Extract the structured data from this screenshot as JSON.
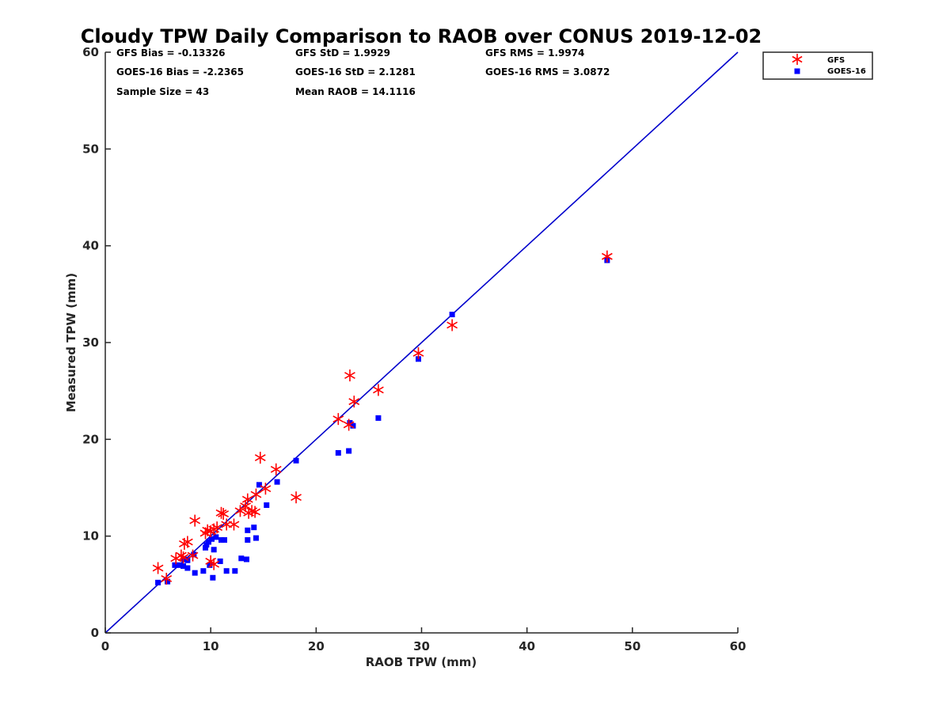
{
  "chart_data": {
    "type": "scatter",
    "title": "Cloudy TPW Daily Comparison to RAOB over CONUS 2019-12-02",
    "xlabel": "RAOB TPW (mm)",
    "ylabel": "Measured TPW (mm)",
    "xlim": [
      0,
      60
    ],
    "ylim": [
      0,
      60
    ],
    "xticks": [
      "0",
      "10",
      "20",
      "30",
      "40",
      "50",
      "60"
    ],
    "yticks": [
      "0",
      "10",
      "20",
      "30",
      "40",
      "50",
      "60"
    ],
    "grid": false,
    "legend_position": "top-right",
    "reference_line": {
      "x": [
        0,
        60
      ],
      "y": [
        0,
        60
      ],
      "color": "#0000cc"
    },
    "stats": [
      "GFS Bias = -0.13326",
      "GFS StD = 1.9929",
      "GFS RMS = 1.9974",
      "GOES-16 Bias = -2.2365",
      "GOES-16 StD = 2.1281",
      "GOES-16 RMS = 3.0872",
      "Sample Size = 43",
      "Mean RAOB = 14.1116"
    ],
    "series": [
      {
        "name": "GFS",
        "marker": "asterisk",
        "color": "#ff0000",
        "points": [
          [
            5.0,
            6.7
          ],
          [
            5.8,
            5.6
          ],
          [
            6.7,
            7.7
          ],
          [
            7.2,
            8.0
          ],
          [
            7.5,
            9.2
          ],
          [
            7.8,
            9.4
          ],
          [
            7.4,
            7.8
          ],
          [
            8.3,
            8.0
          ],
          [
            8.5,
            11.6
          ],
          [
            9.5,
            10.3
          ],
          [
            9.7,
            10.6
          ],
          [
            10.0,
            10.5
          ],
          [
            10.3,
            10.7
          ],
          [
            10.0,
            7.4
          ],
          [
            10.3,
            7.1
          ],
          [
            10.6,
            10.9
          ],
          [
            11.0,
            12.4
          ],
          [
            11.2,
            12.3
          ],
          [
            11.5,
            11.2
          ],
          [
            12.2,
            11.2
          ],
          [
            12.8,
            12.6
          ],
          [
            13.3,
            13.1
          ],
          [
            13.5,
            13.8
          ],
          [
            13.6,
            12.4
          ],
          [
            13.9,
            12.6
          ],
          [
            14.2,
            12.5
          ],
          [
            14.3,
            14.3
          ],
          [
            14.7,
            18.1
          ],
          [
            15.2,
            14.9
          ],
          [
            16.2,
            16.9
          ],
          [
            18.1,
            14.0
          ],
          [
            22.1,
            22.1
          ],
          [
            23.1,
            21.5
          ],
          [
            23.2,
            26.6
          ],
          [
            23.6,
            23.9
          ],
          [
            25.9,
            25.1
          ],
          [
            29.7,
            28.9
          ],
          [
            32.9,
            31.8
          ],
          [
            47.6,
            38.9
          ]
        ]
      },
      {
        "name": "GOES-16",
        "marker": "square",
        "color": "#0000ff",
        "points": [
          [
            5.0,
            5.2
          ],
          [
            5.9,
            5.3
          ],
          [
            6.6,
            7.0
          ],
          [
            7.1,
            7.0
          ],
          [
            7.4,
            6.9
          ],
          [
            7.5,
            7.6
          ],
          [
            7.8,
            7.5
          ],
          [
            7.8,
            6.7
          ],
          [
            8.4,
            8.1
          ],
          [
            8.5,
            6.2
          ],
          [
            9.3,
            6.4
          ],
          [
            9.5,
            8.8
          ],
          [
            9.6,
            9.1
          ],
          [
            9.8,
            9.4
          ],
          [
            9.9,
            7.0
          ],
          [
            10.1,
            9.7
          ],
          [
            10.2,
            5.7
          ],
          [
            10.3,
            8.6
          ],
          [
            10.5,
            9.9
          ],
          [
            10.9,
            7.4
          ],
          [
            11.0,
            9.6
          ],
          [
            11.3,
            9.6
          ],
          [
            11.5,
            6.4
          ],
          [
            12.3,
            6.4
          ],
          [
            12.9,
            7.7
          ],
          [
            13.4,
            7.6
          ],
          [
            13.5,
            10.6
          ],
          [
            13.5,
            9.6
          ],
          [
            14.1,
            10.9
          ],
          [
            14.3,
            9.8
          ],
          [
            14.6,
            15.3
          ],
          [
            15.3,
            13.2
          ],
          [
            16.3,
            15.6
          ],
          [
            18.1,
            17.8
          ],
          [
            22.1,
            18.6
          ],
          [
            23.1,
            18.8
          ],
          [
            23.2,
            21.7
          ],
          [
            23.5,
            21.4
          ],
          [
            25.9,
            22.2
          ],
          [
            29.7,
            28.3
          ],
          [
            32.9,
            32.9
          ],
          [
            47.6,
            38.5
          ]
        ]
      }
    ]
  }
}
